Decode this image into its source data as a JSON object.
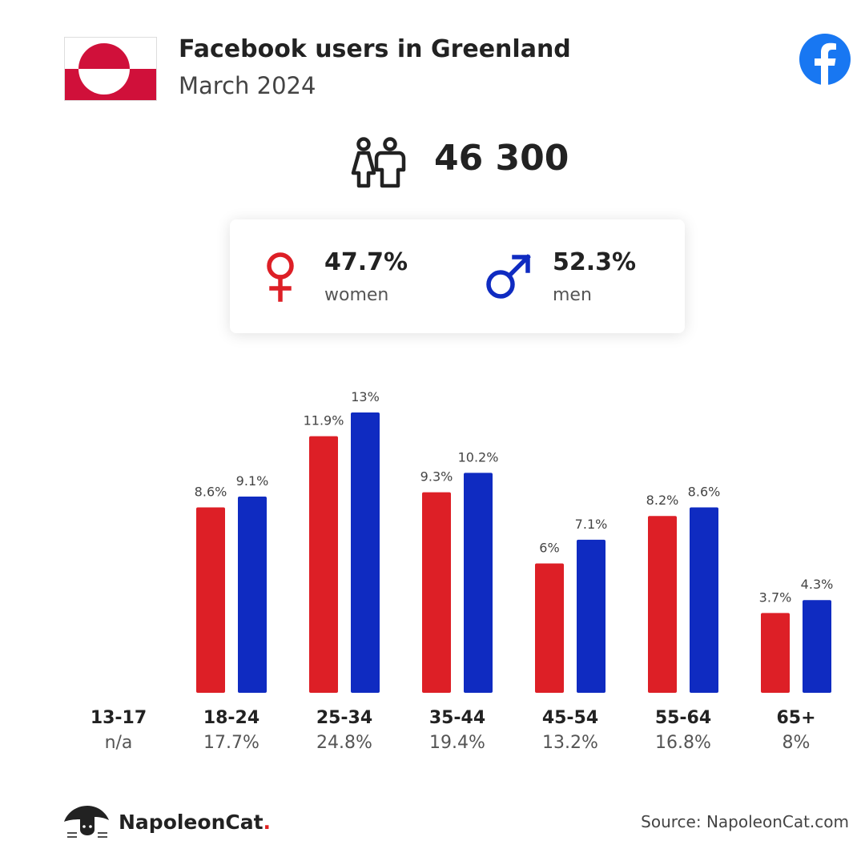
{
  "header": {
    "title": "Facebook users in Greenland",
    "subtitle": "March 2024",
    "flag_icon": "greenland-flag",
    "brand_icon": "facebook-logo-icon"
  },
  "total_users": "46 300",
  "gender": {
    "women_pct": "47.7%",
    "women_label": "women",
    "men_pct": "52.3%",
    "men_label": "men",
    "women_color": "#dd1f26",
    "men_color": "#0f2bc1"
  },
  "chart_data": {
    "type": "bar",
    "categories": [
      "13-17",
      "18-24",
      "25-34",
      "35-44",
      "45-54",
      "55-64",
      "65+"
    ],
    "category_totals": [
      "n/a",
      "17.7%",
      "24.8%",
      "19.4%",
      "13.2%",
      "16.8%",
      "8%"
    ],
    "series": [
      {
        "values": [
          null,
          8.6,
          11.9,
          9.3,
          6,
          8.2,
          3.7
        ],
        "labels": [
          "",
          "8.6%",
          "11.9%",
          "9.3%",
          "6%",
          "8.2%",
          "3.7%"
        ],
        "color": "#dd1f26"
      },
      {
        "values": [
          null,
          9.1,
          13,
          10.2,
          7.1,
          8.6,
          4.3
        ],
        "labels": [
          "",
          "9.1%",
          "13%",
          "10.2%",
          "7.1%",
          "8.6%",
          "4.3%"
        ],
        "color": "#0f2bc1"
      }
    ],
    "ylim": [
      0,
      13
    ]
  },
  "footer": {
    "brand_name": "NapoleonCat",
    "brand_dot": ".",
    "source": "Source: NapoleonCat.com"
  }
}
